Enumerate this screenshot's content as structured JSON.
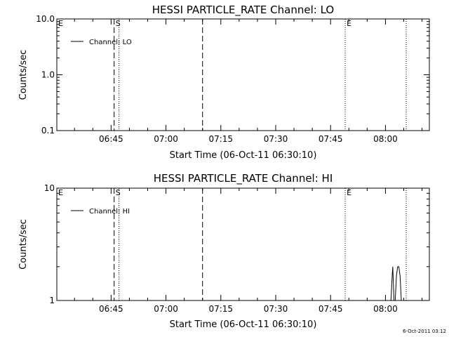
{
  "timestamp": "6-Oct-2011 03:12",
  "chart_data": [
    {
      "type": "line",
      "title": "HESSI PARTICLE_RATE Channel: LO",
      "xlabel": "Start Time (06-Oct-11 06:30:10)",
      "ylabel": "Counts/sec",
      "yscale": "log",
      "xlim": [
        "06:30:10",
        "08:12:00"
      ],
      "ylim": [
        0.1,
        10.0
      ],
      "x_ticks": [
        "06:45",
        "07:00",
        "07:15",
        "07:30",
        "07:45",
        "08:00"
      ],
      "y_ticks": [
        {
          "value": 0.1,
          "label": "0.1"
        },
        {
          "value": 1.0,
          "label": "1.0"
        },
        {
          "value": 10.0,
          "label": "10.0"
        }
      ],
      "legend": {
        "placement": "top-left",
        "entries": [
          "Channel: LO"
        ]
      },
      "series": [
        {
          "name": "Channel: LO",
          "x": [],
          "y": []
        }
      ],
      "vlines": [
        {
          "x": "06:45:50",
          "style": "dashed"
        },
        {
          "x": "06:47:10",
          "style": "dotted"
        },
        {
          "x": "07:10:00",
          "style": "dashed"
        },
        {
          "x": "07:49:00",
          "style": "dotted"
        },
        {
          "x": "08:05:40",
          "style": "dotted"
        }
      ],
      "markers": [
        {
          "label": "E",
          "x": "06:30:10"
        },
        {
          "label": "S",
          "x": "06:45:50"
        },
        {
          "label": "E",
          "x": "07:49:00"
        }
      ]
    },
    {
      "type": "line",
      "title": "HESSI PARTICLE_RATE Channel: HI",
      "xlabel": "Start Time (06-Oct-11 06:30:10)",
      "ylabel": "Counts/sec",
      "yscale": "log",
      "xlim": [
        "06:30:10",
        "08:12:00"
      ],
      "ylim": [
        1,
        10
      ],
      "x_ticks": [
        "06:45",
        "07:00",
        "07:15",
        "07:30",
        "07:45",
        "08:00"
      ],
      "y_ticks": [
        {
          "value": 1,
          "label": "1"
        },
        {
          "value": 10,
          "label": "10"
        }
      ],
      "legend": {
        "placement": "top-left",
        "entries": [
          "Channel: HI"
        ]
      },
      "series": [
        {
          "name": "Channel: HI",
          "x": [
            "08:01:30",
            "08:01:50",
            "08:02:00",
            "08:02:20",
            "08:02:40",
            "08:03:00",
            "08:03:20",
            "08:03:40",
            "08:04:00",
            "08:04:20"
          ],
          "y": [
            1,
            1.65,
            2,
            1,
            1,
            1.65,
            2,
            2,
            1.65,
            1
          ]
        }
      ],
      "vlines": [
        {
          "x": "06:45:50",
          "style": "dashed"
        },
        {
          "x": "06:47:10",
          "style": "dotted"
        },
        {
          "x": "07:10:00",
          "style": "dashed"
        },
        {
          "x": "07:49:00",
          "style": "dotted"
        },
        {
          "x": "08:05:40",
          "style": "dotted"
        }
      ],
      "markers": [
        {
          "label": "E",
          "x": "06:30:10"
        },
        {
          "label": "S",
          "x": "06:45:50"
        },
        {
          "label": "E",
          "x": "07:49:00"
        }
      ]
    }
  ]
}
